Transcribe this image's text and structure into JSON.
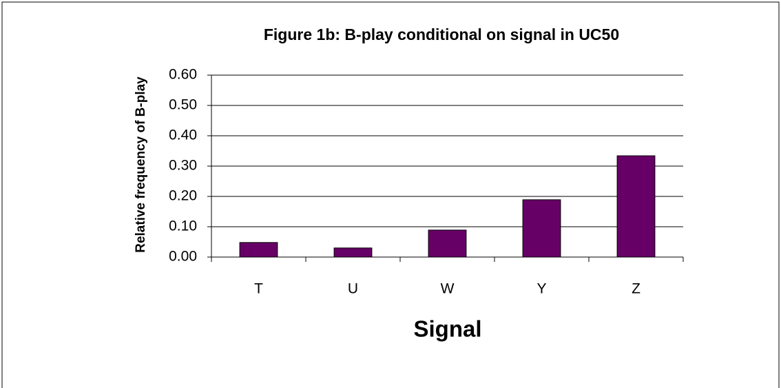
{
  "chart_data": {
    "type": "bar",
    "title": "Figure 1b: B-play conditional on signal in UC50",
    "x_label": "Signal",
    "y_label": "Relative frequency of B-play",
    "categories": [
      "T",
      "U",
      "W",
      "Y",
      "Z"
    ],
    "values": [
      0.048,
      0.03,
      0.089,
      0.189,
      0.334
    ],
    "color": "#660066",
    "ylim": [
      0,
      0.6
    ],
    "yticks": [
      {
        "value": 0,
        "label": "0.00"
      },
      {
        "value": 0.1,
        "label": "0.10"
      },
      {
        "value": 0.2,
        "label": "0.20"
      },
      {
        "value": 0.3,
        "label": "0.30"
      },
      {
        "value": 0.4,
        "label": "0.40"
      },
      {
        "value": 0.5,
        "label": "0.50"
      },
      {
        "value": 0.6,
        "label": "0.60"
      }
    ],
    "grid": true
  }
}
